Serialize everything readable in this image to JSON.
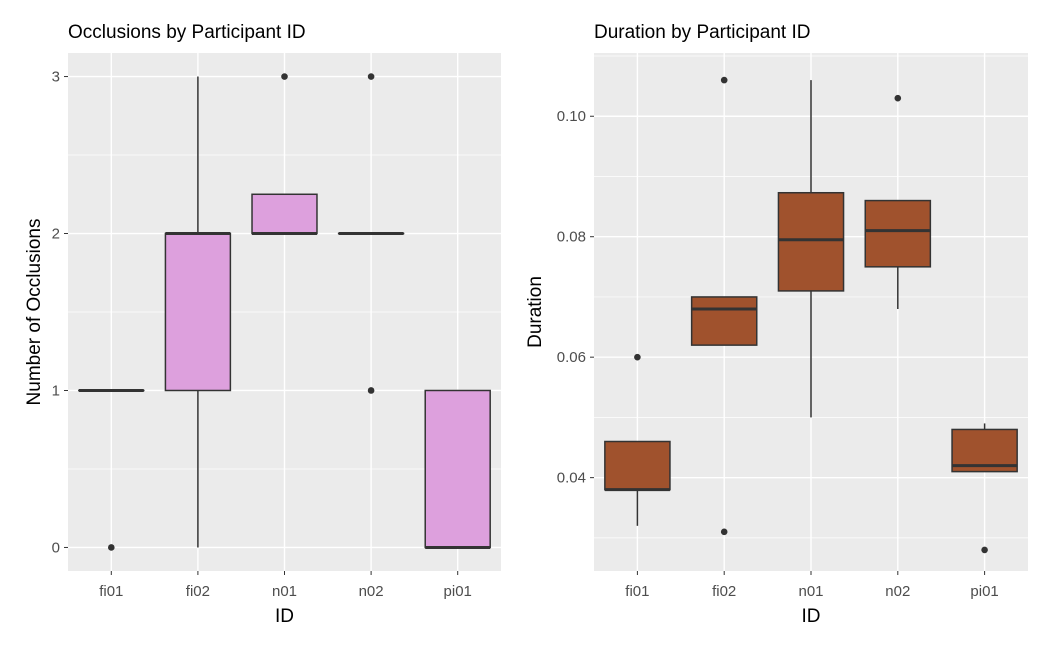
{
  "chart_data": [
    {
      "type": "box",
      "title": "Occlusions by Participant ID",
      "xlabel": "ID",
      "ylabel": "Number of Occlusions",
      "categories": [
        "fi01",
        "fi02",
        "n01",
        "n02",
        "pi01"
      ],
      "ylim": [
        -0.15,
        3.15
      ],
      "yticks": [
        0,
        1,
        2,
        3
      ],
      "ytick_labels": [
        "0",
        "1",
        "2",
        "3"
      ],
      "fill_color": "#DDA0DD",
      "boxes": [
        {
          "q1": 1,
          "median": 1,
          "q3": 1,
          "whisker_low": 1,
          "whisker_high": 1,
          "outliers": [
            0
          ]
        },
        {
          "q1": 1,
          "median": 2,
          "q3": 2,
          "whisker_low": 0,
          "whisker_high": 3,
          "outliers": []
        },
        {
          "q1": 2,
          "median": 2,
          "q3": 2.25,
          "whisker_low": 2,
          "whisker_high": 2.25,
          "outliers": [
            3
          ]
        },
        {
          "q1": 2,
          "median": 2,
          "q3": 2,
          "whisker_low": 2,
          "whisker_high": 2,
          "outliers": [
            1,
            3
          ]
        },
        {
          "q1": 0,
          "median": 0,
          "q3": 1,
          "whisker_low": 0,
          "whisker_high": 1,
          "outliers": []
        }
      ],
      "grid": true
    },
    {
      "type": "box",
      "title": "Duration by Participant ID",
      "xlabel": "ID",
      "ylabel": "Duration",
      "categories": [
        "fi01",
        "fi02",
        "n01",
        "n02",
        "pi01"
      ],
      "ylim": [
        0.0245,
        0.1105
      ],
      "yticks": [
        0.04,
        0.06,
        0.08,
        0.1
      ],
      "ytick_labels": [
        "0.04",
        "0.06",
        "0.08",
        "0.10"
      ],
      "fill_color": "#A0522D",
      "boxes": [
        {
          "q1": 0.038,
          "median": 0.038,
          "q3": 0.046,
          "whisker_low": 0.032,
          "whisker_high": 0.046,
          "outliers": [
            0.06
          ]
        },
        {
          "q1": 0.062,
          "median": 0.068,
          "q3": 0.07,
          "whisker_low": 0.062,
          "whisker_high": 0.07,
          "outliers": [
            0.106,
            0.031
          ]
        },
        {
          "q1": 0.071,
          "median": 0.0795,
          "q3": 0.0873,
          "whisker_low": 0.05,
          "whisker_high": 0.106,
          "outliers": []
        },
        {
          "q1": 0.075,
          "median": 0.081,
          "q3": 0.086,
          "whisker_low": 0.068,
          "whisker_high": 0.086,
          "outliers": [
            0.103
          ]
        },
        {
          "q1": 0.041,
          "median": 0.042,
          "q3": 0.048,
          "whisker_low": 0.041,
          "whisker_high": 0.049,
          "outliers": [
            0.028
          ]
        }
      ],
      "grid": true
    }
  ]
}
